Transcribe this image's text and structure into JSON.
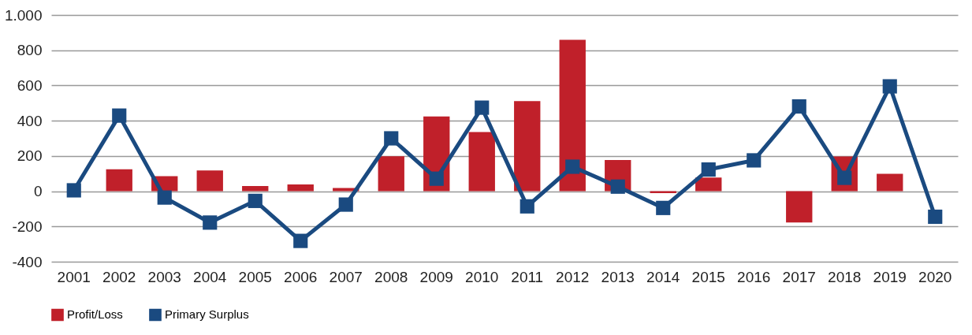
{
  "chart_data": {
    "type": "bar",
    "categories": [
      "2001",
      "2002",
      "2003",
      "2004",
      "2005",
      "2006",
      "2007",
      "2008",
      "2009",
      "2010",
      "2011",
      "2012",
      "2013",
      "2014",
      "2015",
      "2016",
      "2017",
      "2018",
      "2019",
      "2020"
    ],
    "series": [
      {
        "name": "Profit/Loss",
        "color": "#c0202a",
        "values": [
          null,
          125,
          85,
          118,
          29,
          38,
          18,
          198,
          424,
          336,
          511,
          859,
          177,
          -11,
          78,
          null,
          -177,
          197,
          99,
          null
        ]
      },
      {
        "name": "Primary Surplus",
        "type": "line",
        "color": "#1a4a80",
        "values": [
          5,
          429,
          -36,
          -178,
          -55,
          -282,
          -76,
          300,
          71,
          474,
          -86,
          139,
          26,
          -95,
          123,
          175,
          481,
          76,
          595,
          -145
        ]
      }
    ],
    "ylim": [
      -400,
      1000
    ],
    "yticks": [
      -400,
      -200,
      0,
      200,
      400,
      600,
      800,
      {
        "value": 1000,
        "label": "1.000"
      }
    ],
    "grid": "y",
    "legend": "bottom",
    "marker": "square",
    "line_style": "solid"
  }
}
